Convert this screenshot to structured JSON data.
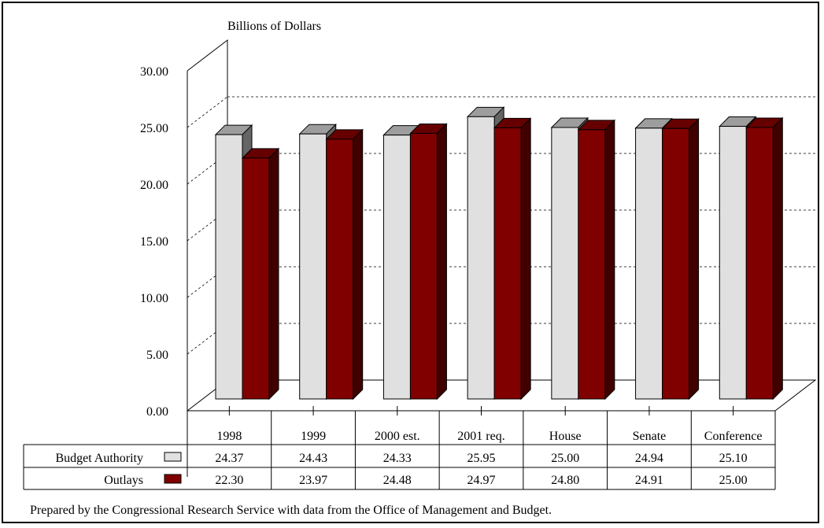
{
  "chart_data": {
    "type": "bar",
    "title": "",
    "ylabel": "Billions of Dollars",
    "xlabel": "",
    "ylim": [
      0,
      30
    ],
    "yticks": [
      "0.00",
      "5.00",
      "10.00",
      "15.00",
      "20.00",
      "25.00",
      "30.00"
    ],
    "grid": true,
    "categories": [
      "1998",
      "1999",
      "2000 est.",
      "2001 req.",
      "House",
      "Senate",
      "Conference"
    ],
    "series": [
      {
        "name": "Budget Authority",
        "values": [
          24.37,
          24.43,
          24.33,
          25.95,
          25.0,
          24.94,
          25.1
        ],
        "labels": [
          "24.37",
          "24.43",
          "24.33",
          "25.95",
          "25.00",
          "24.94",
          "25.10"
        ],
        "color": "#e0e0e0"
      },
      {
        "name": "Outlays",
        "values": [
          22.3,
          23.97,
          24.48,
          24.97,
          24.8,
          24.91,
          25.0
        ],
        "labels": [
          "22.30",
          "23.97",
          "24.48",
          "24.97",
          "24.80",
          "24.91",
          "25.00"
        ],
        "color": "#800000"
      }
    ]
  },
  "footnote": "Prepared by the Congressional Research Service with data from the Office of Management and Budget."
}
